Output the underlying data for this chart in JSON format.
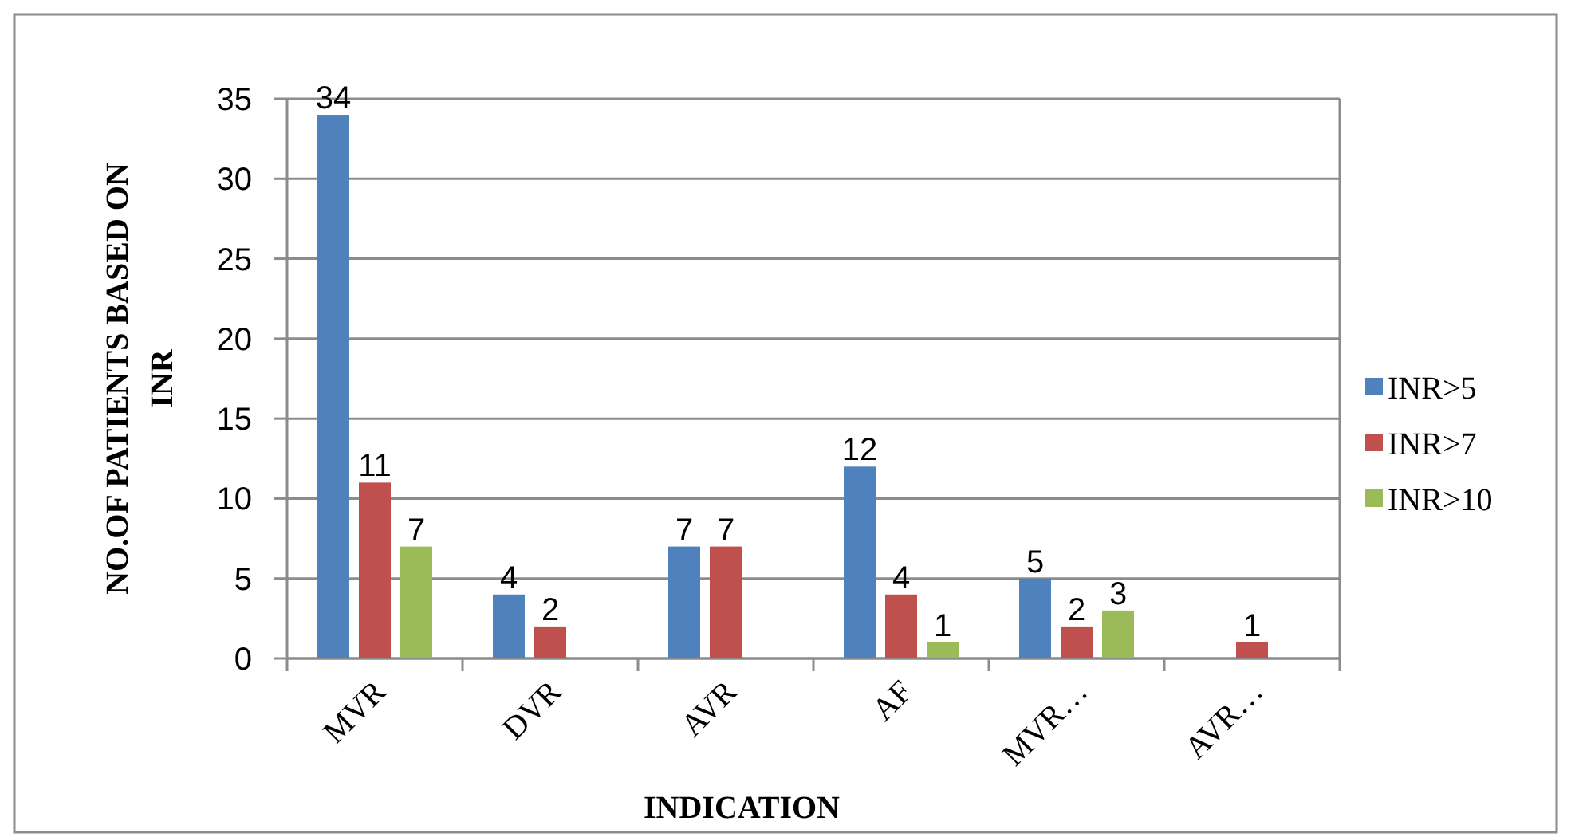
{
  "chart_data": {
    "type": "bar",
    "xlabel": "INDICATION",
    "ylabel": "NO.OF PATIENTS BASED ON INR",
    "categories": [
      "MVR",
      "DVR",
      "AVR",
      "AF",
      "MVR…",
      "AVR…"
    ],
    "series": [
      {
        "name": "INR>5",
        "color": "#4f81bd",
        "values": [
          34,
          4,
          7,
          12,
          5,
          0
        ],
        "value_labels": [
          "34",
          "4",
          "7",
          "12",
          "5",
          null
        ]
      },
      {
        "name": "INR>7",
        "color": "#c0504d",
        "values": [
          11,
          2,
          7,
          4,
          2,
          1
        ],
        "value_labels": [
          "11",
          "2",
          "7",
          "4",
          "2",
          "1"
        ]
      },
      {
        "name": "INR>10",
        "color": "#9bbb59",
        "values": [
          7,
          0,
          0,
          1,
          3,
          0
        ],
        "value_labels": [
          "7",
          null,
          null,
          "1",
          "3",
          null
        ]
      }
    ],
    "ylim": [
      0,
      35
    ],
    "yticks": [
      0,
      5,
      10,
      15,
      20,
      25,
      30,
      35
    ],
    "grid": "y",
    "legend": "right"
  }
}
